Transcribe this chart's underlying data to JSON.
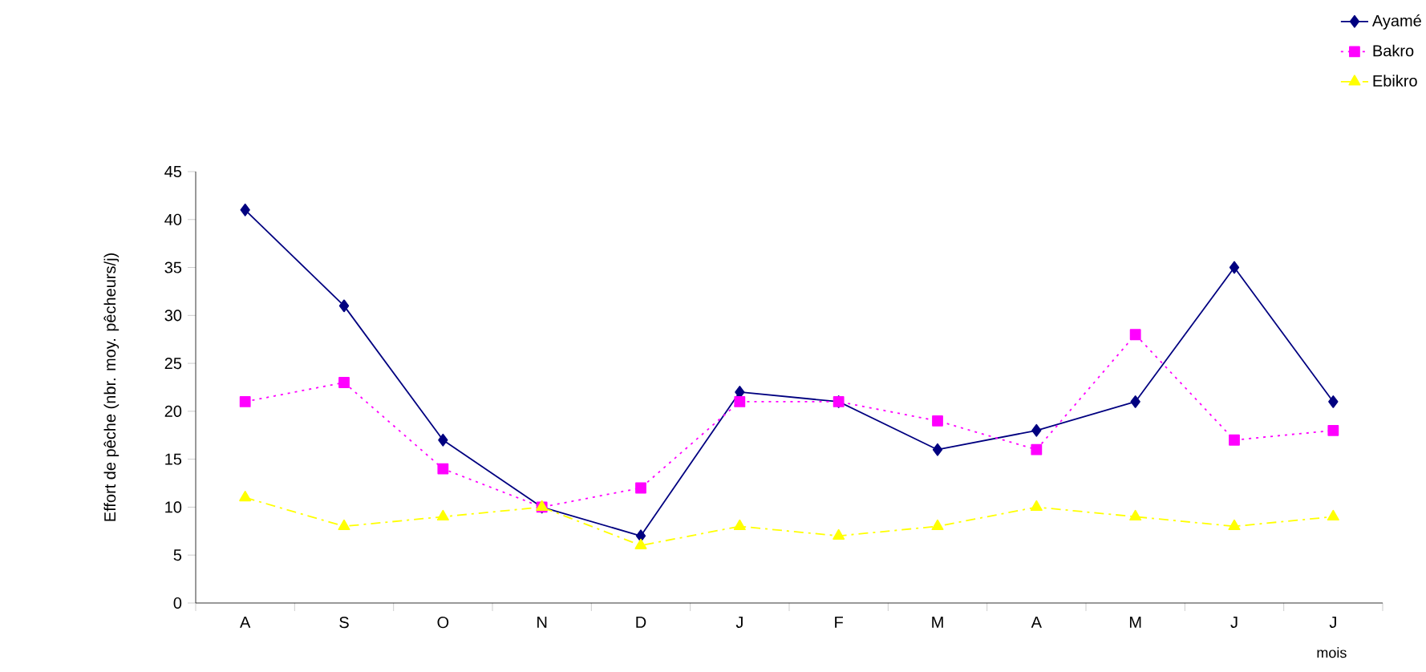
{
  "chart_data": {
    "type": "line",
    "ylabel": "Effort de pêche (nbr. moy. pêcheurs/j)",
    "xlabel": "mois",
    "categories": [
      "A",
      "S",
      "O",
      "N",
      "D",
      "J",
      "F",
      "M",
      "A",
      "M",
      "J",
      "J"
    ],
    "series": [
      {
        "name": "Ayamé",
        "color": "#000080",
        "marker": "diamond",
        "line_style": "solid",
        "values": [
          41,
          31,
          17,
          10,
          7,
          22,
          21,
          16,
          18,
          21,
          35,
          21
        ]
      },
      {
        "name": "Bakro",
        "color": "#ff00ff",
        "marker": "square",
        "line_style": "dotted",
        "values": [
          21,
          23,
          14,
          10,
          12,
          21,
          21,
          19,
          16,
          28,
          17,
          18
        ]
      },
      {
        "name": "Ebikro",
        "color": "#ffff00",
        "marker": "triangle",
        "line_style": "dashed",
        "values": [
          11,
          8,
          9,
          10,
          6,
          8,
          7,
          8,
          10,
          9,
          8,
          9
        ]
      }
    ],
    "ylim": [
      0,
      45
    ],
    "yticks": [
      0,
      5,
      10,
      15,
      20,
      25,
      30,
      35,
      40,
      45
    ],
    "grid": false,
    "legend": "top right"
  }
}
